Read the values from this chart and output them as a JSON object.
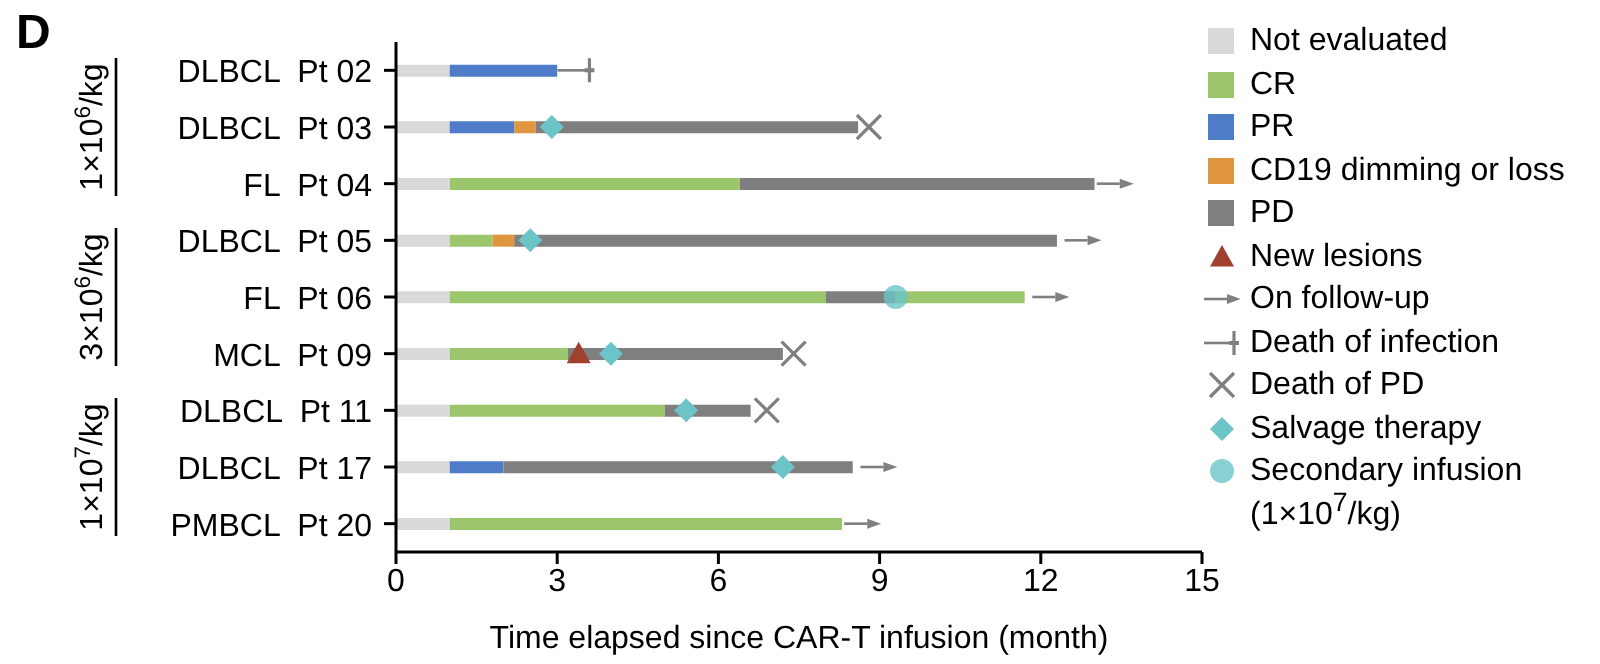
{
  "chart_data": {
    "type": "bar",
    "title": "D",
    "orientation": "horizontal",
    "stacked": true,
    "categories": [
      "DLBCL  Pt 02",
      "DLBCL  Pt 03",
      "FL  Pt 04",
      "DLBCL  Pt 05",
      "FL  Pt 06",
      "MCL  Pt 09",
      "DLBCL  Pt 11",
      "DLBCL  Pt 17",
      "PMBCL  Pt 20"
    ],
    "series": [
      {
        "name": "Not evaluated",
        "color": "#d9d9d9",
        "values": [
          1,
          1,
          1,
          1,
          1,
          1,
          1,
          1,
          1
        ]
      },
      {
        "name": "CR",
        "color": "#9bc66b",
        "values": [
          null,
          null,
          5.4,
          0.8,
          7.0,
          2.2,
          4.0,
          null,
          7.3
        ]
      },
      {
        "name": "PR",
        "color": "#4f7cc9",
        "values": [
          2.0,
          1.2,
          null,
          null,
          null,
          null,
          null,
          1.0,
          null
        ]
      },
      {
        "name": "CD19 dimming or loss",
        "color": "#e0953f",
        "values": [
          null,
          0.4,
          null,
          0.4,
          null,
          null,
          null,
          null,
          null
        ]
      },
      {
        "name": "PD",
        "color": "#7f7f7f",
        "values": [
          null,
          6.0,
          6.6,
          10.1,
          1.3,
          4.0,
          1.6,
          6.5,
          null
        ]
      },
      {
        "color": "#9bc66b",
        "values": [
          null,
          null,
          null,
          null,
          2.4,
          null,
          null,
          null,
          null
        ]
      },
      {
        "name": "New lesions",
        "type": "scatter",
        "marker": "triangle",
        "color": "#a0402e",
        "values": [
          null,
          null,
          null,
          null,
          null,
          3.4,
          null,
          null,
          null
        ]
      },
      {
        "name": "On follow-up",
        "type": "scatter",
        "color": "#7f7f7f",
        "values": [
          null,
          null,
          13.6,
          13.0,
          12.4,
          null,
          null,
          9.2,
          8.9
        ]
      },
      {
        "name": "Death of infection",
        "type": "scatter",
        "color": "#7f7f7f",
        "values": [
          3.6,
          null,
          null,
          null,
          null,
          null,
          null,
          null,
          null
        ]
      },
      {
        "name": "Death of PD",
        "type": "scatter",
        "marker": "cross",
        "color": "#7f7f7f",
        "values": [
          null,
          8.8,
          null,
          null,
          null,
          7.4,
          6.9,
          null,
          null
        ]
      },
      {
        "name": "Salvage therapy",
        "type": "scatter",
        "marker": "diamond",
        "color": "#6cc4c8",
        "values": [
          null,
          2.9,
          null,
          2.5,
          null,
          4.0,
          5.4,
          7.2,
          null
        ]
      },
      {
        "name": "Secondary infusion (1×10$^{7}$/kg)",
        "type": "scatter",
        "marker": "circle",
        "color": "#6cc4c8",
        "values": [
          null,
          null,
          null,
          null,
          9.3,
          null,
          null,
          null,
          null
        ]
      }
    ],
    "xlabel": "Time elapsed since CAR-T infusion (month)",
    "xlim": [
      0,
      15
    ],
    "xticks": [
      0,
      3,
      6,
      9,
      12,
      15
    ],
    "annotations": [
      "1×10$^{6}$/kg",
      "3×10$^{6}$/kg",
      "1×10$^{7}$/kg"
    ],
    "legend": "right"
  }
}
